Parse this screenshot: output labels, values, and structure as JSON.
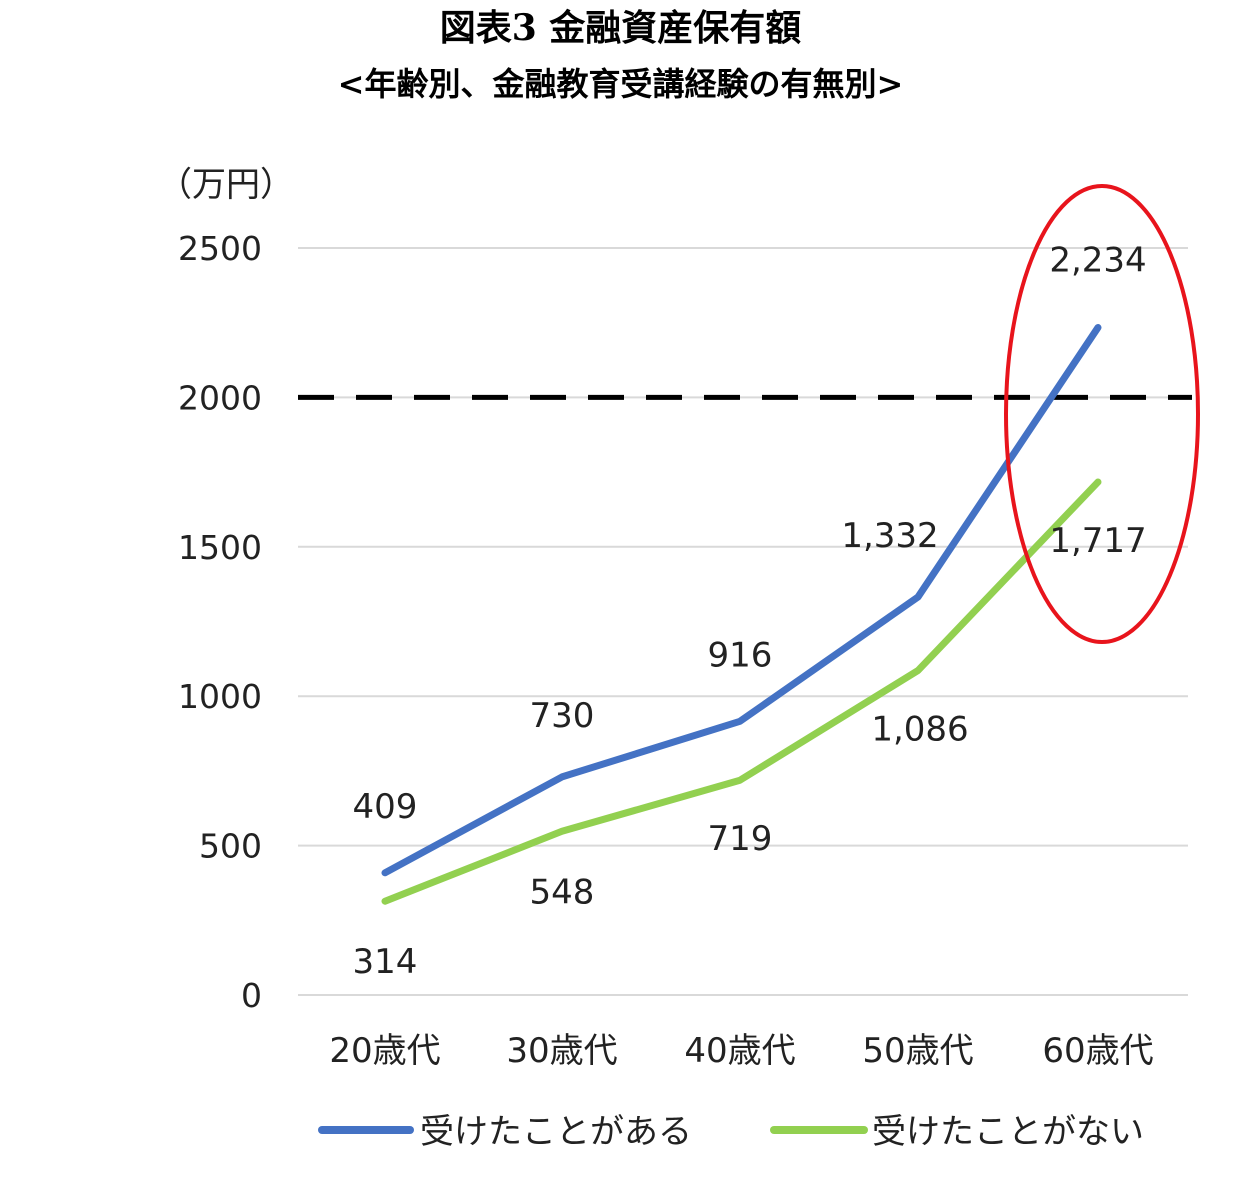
{
  "title": "図表3 金融資産保有額",
  "subtitle": "<年齢別、金融教育受講経験の有無別>",
  "chart_data": {
    "type": "line",
    "unit_label": "（万円）",
    "categories": [
      "20歳代",
      "30歳代",
      "40歳代",
      "50歳代",
      "60歳代"
    ],
    "yticks": [
      "0",
      "500",
      "1000",
      "1500",
      "2000",
      "2500"
    ],
    "ylim": [
      0,
      2500
    ],
    "grid": true,
    "reference_line": {
      "value": 2000,
      "style": "dashed",
      "color": "#000000"
    },
    "highlight": {
      "category": "60歳代",
      "shape": "ellipse",
      "color": "#e8141c"
    },
    "legend_position": "bottom",
    "series": [
      {
        "name": "受けたことがある",
        "color": "#4472c4",
        "values": [
          409,
          730,
          916,
          1332,
          2234
        ],
        "labels": [
          "409",
          "730",
          "916",
          "1,332",
          "2,234"
        ]
      },
      {
        "name": "受けたことがない",
        "color": "#92d050",
        "values": [
          314,
          548,
          719,
          1086,
          1717
        ],
        "labels": [
          "314",
          "548",
          "719",
          "1,086",
          "1,717"
        ]
      }
    ]
  }
}
